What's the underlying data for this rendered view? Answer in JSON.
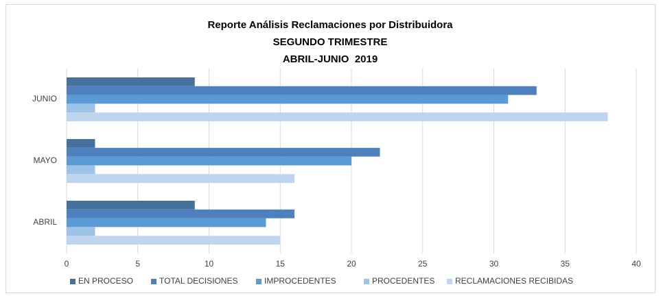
{
  "chart_data": {
    "type": "hbar",
    "title": "Reporte Análisis Reclamaciones por Distribuidora",
    "subtitle": [
      "SEGUNDO TRIMESTRE",
      "ABRIL-JUNIO  2019"
    ],
    "categories": [
      "ABRIL",
      "MAYO",
      "JUNIO"
    ],
    "series": [
      {
        "name": "EN PROCESO",
        "color": "#44729d",
        "values": [
          9,
          2,
          9
        ]
      },
      {
        "name": "TOTAL DECISIONES",
        "color": "#4e80bd",
        "values": [
          16,
          22,
          33
        ]
      },
      {
        "name": "IMPROCEDENTES",
        "color": "#5b9bd5",
        "values": [
          14,
          20,
          31
        ]
      },
      {
        "name": "PROCEDENTES",
        "color": "#9dc3e6",
        "values": [
          2,
          2,
          2
        ]
      },
      {
        "name": "RECLAMACIONES RECIBIDAS",
        "color": "#bfd5ee",
        "values": [
          15,
          16,
          38
        ]
      }
    ],
    "xlim": [
      0,
      40
    ],
    "xticks": [
      0,
      5,
      10,
      15,
      20,
      25,
      30,
      35,
      40
    ],
    "grid": true,
    "legend": "bottom"
  }
}
